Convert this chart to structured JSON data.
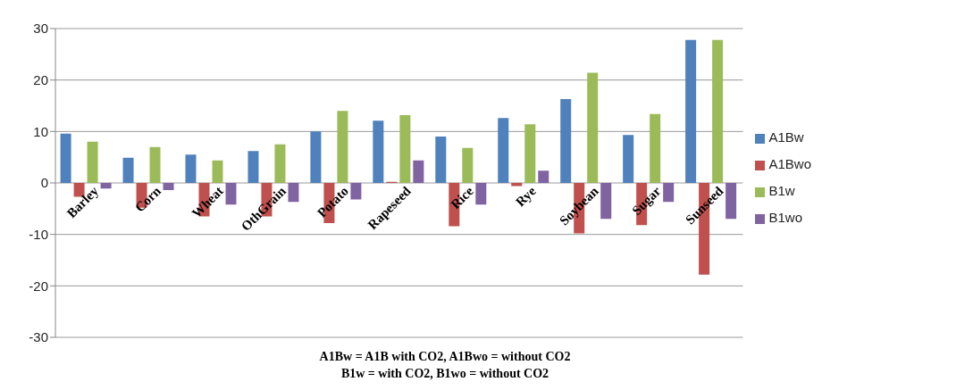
{
  "chart_data": {
    "type": "bar",
    "categories": [
      "Barley",
      "Corn",
      "Wheat",
      "OthGrain",
      "Potato",
      "Rapeseed",
      "Rice",
      "Rye",
      "Soybean",
      "Sugar",
      "Sunseed"
    ],
    "series": [
      {
        "name": "A1Bw",
        "color": "#4f81bd",
        "values": [
          9.6,
          4.9,
          5.5,
          6.2,
          10.0,
          12.1,
          9.0,
          12.6,
          16.3,
          9.3,
          27.8
        ]
      },
      {
        "name": "A1Bwo",
        "color": "#c0504d",
        "values": [
          -2.7,
          -4.8,
          -6.5,
          -6.5,
          -7.8,
          0.2,
          -8.4,
          -0.6,
          -9.8,
          -8.2,
          -17.8
        ]
      },
      {
        "name": "B1w",
        "color": "#9bbb59",
        "values": [
          8.0,
          7.0,
          4.4,
          7.5,
          14.0,
          13.2,
          6.8,
          11.4,
          21.4,
          13.4,
          27.8
        ]
      },
      {
        "name": "B1wo",
        "color": "#8064a2",
        "values": [
          -1.1,
          -1.4,
          -4.2,
          -3.7,
          -3.2,
          4.4,
          -4.2,
          2.4,
          -7.0,
          -3.7,
          -7.0
        ]
      }
    ],
    "ylim": [
      -30,
      30
    ],
    "yticks": [
      -30,
      -20,
      -10,
      0,
      10,
      20,
      30
    ],
    "grid": "y",
    "legend": "right",
    "annotations": [
      "A1Bw = A1B with CO2, A1Bwo = without CO2",
      "B1w = with CO2, B1wo = without CO2"
    ]
  }
}
